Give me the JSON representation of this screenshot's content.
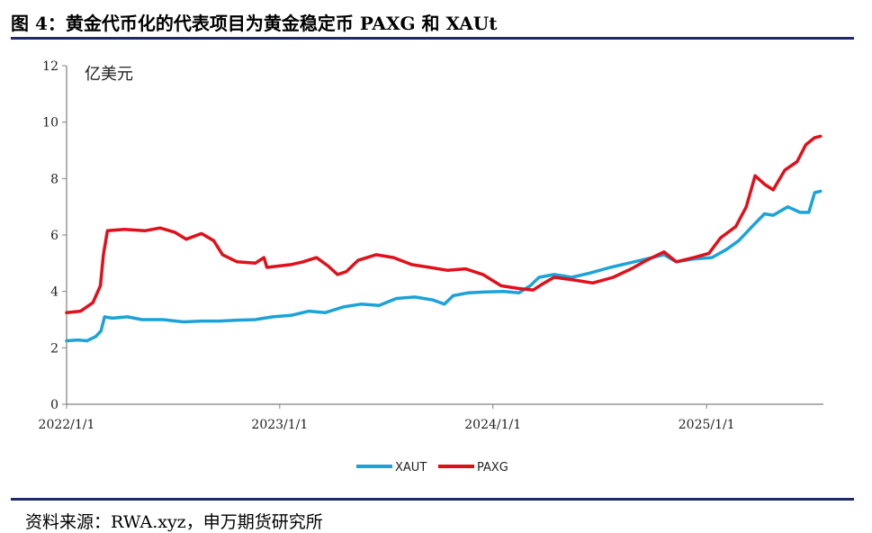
{
  "header": {
    "title": "图 4：黄金代币化的代表项目为黄金稳定币 PAXG 和 XAUt"
  },
  "footer": {
    "source": "资料来源：RWA.xyz，申万期货研究所"
  },
  "colors": {
    "rule": "#1f2a6b",
    "xaut": "#1ba3d8",
    "paxg": "#e0101a",
    "axis": "#808080"
  },
  "chart_data": {
    "type": "line",
    "unit_label": "亿美元",
    "ylim": [
      0,
      12
    ],
    "yticks": [
      "0",
      "2",
      "4",
      "6",
      "8",
      "10",
      "12"
    ],
    "xlim": [
      "2022-01-01",
      "2025-07-20"
    ],
    "xticks": [
      {
        "date": "2022-01-01",
        "label": "2022/1/1"
      },
      {
        "date": "2023-01-01",
        "label": "2023/1/1"
      },
      {
        "date": "2024-01-01",
        "label": "2024/1/1"
      },
      {
        "date": "2025-01-01",
        "label": "2025/1/1"
      }
    ],
    "grid": false,
    "legend": "bottom-center",
    "series": [
      {
        "name": "XAUT",
        "color": "#1ba3d8",
        "points": [
          [
            "2022-01-01",
            2.25
          ],
          [
            "2022-01-20",
            2.28
          ],
          [
            "2022-02-05",
            2.25
          ],
          [
            "2022-02-20",
            2.4
          ],
          [
            "2022-03-01",
            2.6
          ],
          [
            "2022-03-07",
            3.1
          ],
          [
            "2022-03-20",
            3.05
          ],
          [
            "2022-04-15",
            3.1
          ],
          [
            "2022-05-10",
            3.0
          ],
          [
            "2022-06-15",
            3.0
          ],
          [
            "2022-07-20",
            2.92
          ],
          [
            "2022-08-20",
            2.95
          ],
          [
            "2022-09-20",
            2.95
          ],
          [
            "2022-10-20",
            2.98
          ],
          [
            "2022-11-20",
            3.0
          ],
          [
            "2022-12-20",
            3.1
          ],
          [
            "2023-01-20",
            3.15
          ],
          [
            "2023-02-20",
            3.3
          ],
          [
            "2023-03-20",
            3.25
          ],
          [
            "2023-04-20",
            3.45
          ],
          [
            "2023-05-20",
            3.55
          ],
          [
            "2023-06-20",
            3.5
          ],
          [
            "2023-07-20",
            3.75
          ],
          [
            "2023-08-20",
            3.8
          ],
          [
            "2023-09-20",
            3.7
          ],
          [
            "2023-10-10",
            3.55
          ],
          [
            "2023-10-25",
            3.85
          ],
          [
            "2023-11-20",
            3.95
          ],
          [
            "2023-12-20",
            3.98
          ],
          [
            "2024-01-20",
            4.0
          ],
          [
            "2024-02-15",
            3.95
          ],
          [
            "2024-03-05",
            4.2
          ],
          [
            "2024-03-20",
            4.5
          ],
          [
            "2024-04-15",
            4.6
          ],
          [
            "2024-05-15",
            4.5
          ],
          [
            "2024-06-15",
            4.65
          ],
          [
            "2024-07-20",
            4.85
          ],
          [
            "2024-08-20",
            5.0
          ],
          [
            "2024-09-20",
            5.15
          ],
          [
            "2024-10-20",
            5.3
          ],
          [
            "2024-11-10",
            5.05
          ],
          [
            "2024-12-10",
            5.15
          ],
          [
            "2025-01-10",
            5.2
          ],
          [
            "2025-02-05",
            5.5
          ],
          [
            "2025-02-25",
            5.8
          ],
          [
            "2025-03-20",
            6.3
          ],
          [
            "2025-04-10",
            6.75
          ],
          [
            "2025-04-25",
            6.7
          ],
          [
            "2025-05-20",
            7.0
          ],
          [
            "2025-06-10",
            6.8
          ],
          [
            "2025-06-25",
            6.8
          ],
          [
            "2025-07-05",
            7.5
          ],
          [
            "2025-07-15",
            7.55
          ]
        ]
      },
      {
        "name": "PAXG",
        "color": "#e0101a",
        "points": [
          [
            "2022-01-01",
            3.25
          ],
          [
            "2022-01-25",
            3.3
          ],
          [
            "2022-02-15",
            3.6
          ],
          [
            "2022-02-28",
            4.2
          ],
          [
            "2022-03-05",
            5.3
          ],
          [
            "2022-03-12",
            6.15
          ],
          [
            "2022-04-10",
            6.2
          ],
          [
            "2022-05-15",
            6.15
          ],
          [
            "2022-06-10",
            6.25
          ],
          [
            "2022-07-05",
            6.1
          ],
          [
            "2022-07-25",
            5.85
          ],
          [
            "2022-08-20",
            6.05
          ],
          [
            "2022-09-10",
            5.8
          ],
          [
            "2022-09-25",
            5.3
          ],
          [
            "2022-10-20",
            5.05
          ],
          [
            "2022-11-20",
            5.0
          ],
          [
            "2022-12-05",
            5.2
          ],
          [
            "2022-12-10",
            4.85
          ],
          [
            "2023-01-20",
            4.95
          ],
          [
            "2023-02-10",
            5.05
          ],
          [
            "2023-03-05",
            5.2
          ],
          [
            "2023-03-25",
            4.9
          ],
          [
            "2023-04-10",
            4.6
          ],
          [
            "2023-04-25",
            4.7
          ],
          [
            "2023-05-15",
            5.1
          ],
          [
            "2023-06-15",
            5.3
          ],
          [
            "2023-07-15",
            5.2
          ],
          [
            "2023-08-15",
            4.95
          ],
          [
            "2023-09-15",
            4.85
          ],
          [
            "2023-10-15",
            4.75
          ],
          [
            "2023-11-15",
            4.8
          ],
          [
            "2023-12-15",
            4.6
          ],
          [
            "2024-01-15",
            4.2
          ],
          [
            "2024-02-15",
            4.1
          ],
          [
            "2024-03-10",
            4.05
          ],
          [
            "2024-03-25",
            4.25
          ],
          [
            "2024-04-15",
            4.5
          ],
          [
            "2024-05-20",
            4.4
          ],
          [
            "2024-06-20",
            4.3
          ],
          [
            "2024-07-25",
            4.5
          ],
          [
            "2024-08-25",
            4.8
          ],
          [
            "2024-09-20",
            5.1
          ],
          [
            "2024-10-20",
            5.4
          ],
          [
            "2024-11-10",
            5.05
          ],
          [
            "2024-12-10",
            5.2
          ],
          [
            "2025-01-05",
            5.35
          ],
          [
            "2025-01-25",
            5.9
          ],
          [
            "2025-02-20",
            6.3
          ],
          [
            "2025-03-10",
            7.0
          ],
          [
            "2025-03-25",
            8.1
          ],
          [
            "2025-04-10",
            7.8
          ],
          [
            "2025-04-25",
            7.6
          ],
          [
            "2025-05-15",
            8.3
          ],
          [
            "2025-06-05",
            8.6
          ],
          [
            "2025-06-20",
            9.2
          ],
          [
            "2025-07-05",
            9.45
          ],
          [
            "2025-07-15",
            9.5
          ]
        ]
      }
    ]
  }
}
